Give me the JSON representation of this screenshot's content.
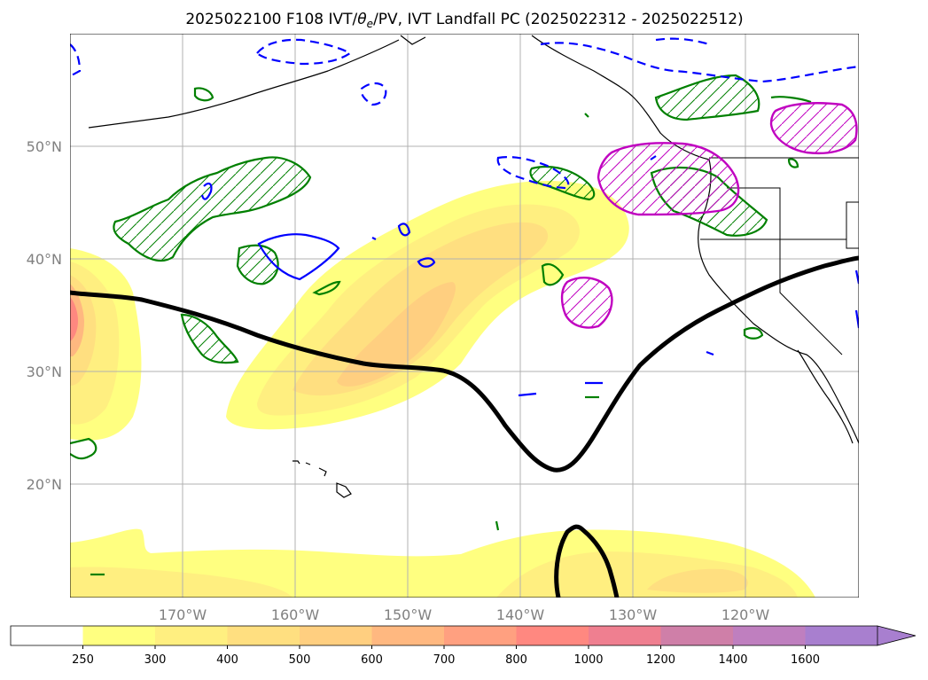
{
  "title_main": "2025022100 F108 IVT/",
  "title_theta": "θ",
  "title_sub": "e",
  "title_rest": "/PV, IVT Landfall PC (2025022312 - 2025022512)",
  "longitude_labels": [
    "170°W",
    "160°W",
    "150°W",
    "140°W",
    "130°W",
    "120°W"
  ],
  "latitude_labels": [
    "50°N",
    "40°N",
    "30°N",
    "20°N"
  ],
  "colorbar": {
    "ticks": [
      "250",
      "300",
      "400",
      "500",
      "600",
      "700",
      "800",
      "1000",
      "1200",
      "1400",
      "1600"
    ],
    "colors": [
      "#ffffff",
      "#ffff80",
      "#ffef80",
      "#ffdf80",
      "#ffcf80",
      "#ffb880",
      "#ffa080",
      "#ff8880",
      "#ef7f90",
      "#cf7fa8",
      "#bf7fbf",
      "#a87fcf"
    ],
    "extend": "max"
  },
  "legend_colors": {
    "contour_green": "#008000",
    "contour_blue": "#0000ff",
    "contour_magenta": "#c000c0",
    "theta_e_line": "#000000",
    "coastline": "#000000",
    "gridline": "#b0b0b0"
  }
}
